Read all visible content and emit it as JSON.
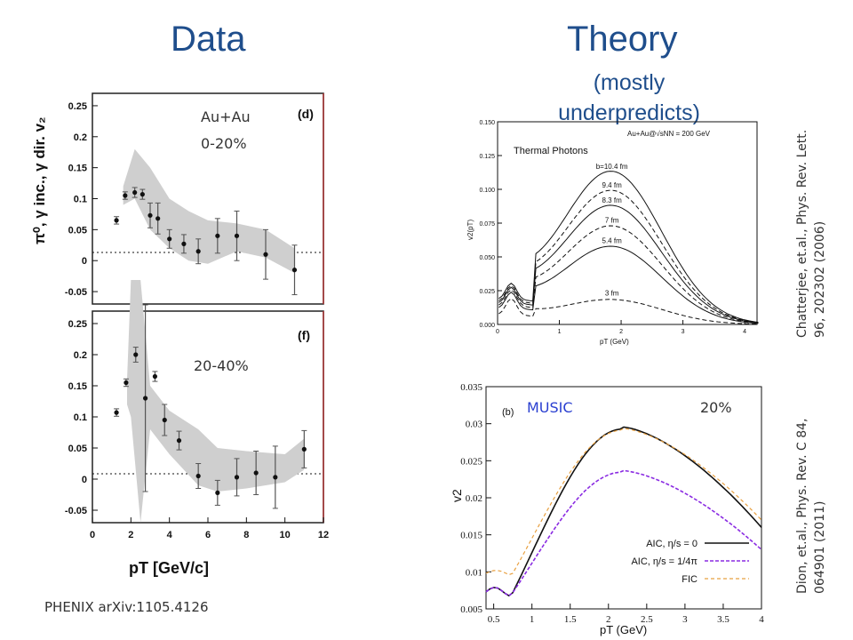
{
  "slide": {
    "title_left": "Data",
    "title_right": "Theory",
    "subtitle_right": "(mostly underpredicts)",
    "source_left": "PHENIX arXiv:1105.4126",
    "ref_top_right": "Chatterjee, et.al., Phys. Rev. Lett. 96, 202302 (2006)",
    "ref_bottom_right": "Dion, et.al., Phys. Rev. C 84, 064901 (2011)"
  },
  "data_panels": {
    "y_axis_label": "π⁰, γ inc., γ dir. v₂",
    "x_axis_label": "pT [GeV/c]",
    "top": {
      "tag": "(d)",
      "system": "Au+Au",
      "centrality": "0-20%",
      "yticks": [
        "0.25",
        "0.2",
        "0.15",
        "0.1",
        "0.05",
        "0",
        "-0.05"
      ]
    },
    "bottom": {
      "tag": "(f)",
      "centrality": "20-40%",
      "yticks": [
        "0.25",
        "0.2",
        "0.15",
        "0.1",
        "0.05",
        "0",
        "-0.05"
      ],
      "xticks": [
        "0",
        "2",
        "4",
        "6",
        "8",
        "10",
        "12"
      ]
    }
  },
  "chart_data": [
    {
      "type": "scatter",
      "panel": "(d)",
      "x": [
        1.25,
        1.7,
        2.2,
        2.6,
        3.0,
        3.4,
        4.0,
        4.75,
        5.5,
        6.5,
        7.5
      ],
      "y": [
        0.065,
        0.105,
        0.11,
        0.107,
        0.073,
        0.068,
        0.035,
        0.027,
        0.015,
        0.04,
        0.04
      ],
      "extra_points": {
        "x": [
          9.0,
          10.5
        ],
        "y": [
          0.01,
          -0.015
        ]
      },
      "ylim": [
        -0.07,
        0.27
      ],
      "xlim": [
        0,
        12
      ]
    },
    {
      "type": "scatter",
      "panel": "(f)",
      "x": [
        1.25,
        1.75,
        2.25,
        2.75,
        3.25,
        3.75,
        4.5,
        5.5,
        6.5,
        7.5,
        8.5,
        9.5,
        11.0
      ],
      "y": [
        0.107,
        0.155,
        0.2,
        0.13,
        0.165,
        0.095,
        0.062,
        0.005,
        -0.022,
        0.003,
        0.01,
        0.003,
        0.048
      ],
      "ylim": [
        -0.07,
        0.27
      ],
      "xlim": [
        0,
        12
      ]
    },
    {
      "type": "line",
      "title": "Thermal Photons",
      "annotation": "Au+Au@√sNN = 200 GeV",
      "xlabel": "pT (GeV)",
      "ylabel": "v2(pT)",
      "xlim": [
        0,
        4.2
      ],
      "ylim": [
        0,
        0.15
      ],
      "xticks": [
        "0",
        "1",
        "2",
        "3",
        "4"
      ],
      "yticks": [
        "0.000",
        "0.025",
        "0.050",
        "0.075",
        "0.100",
        "0.125",
        "0.150"
      ],
      "series": [
        {
          "name": "b=10.4 fm",
          "peak": 0.112
        },
        {
          "name": "9.4 fm",
          "peak": 0.098
        },
        {
          "name": "8.3 fm",
          "peak": 0.087
        },
        {
          "name": "7 fm",
          "peak": 0.072
        },
        {
          "name": "5.4 fm",
          "peak": 0.057
        },
        {
          "name": "3 fm",
          "peak": 0.018
        }
      ]
    },
    {
      "type": "line",
      "tag": "(b)",
      "model": "MUSIC",
      "centrality": "20%",
      "xlabel": "pT (GeV)",
      "ylabel": "v2",
      "xlim": [
        0.4,
        4
      ],
      "ylim": [
        0.005,
        0.035
      ],
      "xticks": [
        "0.5",
        "1",
        "1.5",
        "2",
        "2.5",
        "3",
        "3.5",
        "4"
      ],
      "yticks": [
        "0.005",
        "0.01",
        "0.015",
        "0.02",
        "0.025",
        "0.03",
        "0.035"
      ],
      "series": [
        {
          "name": "AIC, η/s = 0",
          "peak": 0.0296
        },
        {
          "name": "AIC, η/s = 1/4π",
          "peak": 0.0237
        },
        {
          "name": "FIC",
          "peak": 0.0294
        }
      ],
      "colors": {
        "AIC, η/s = 0": "#000000",
        "AIC, η/s = 1/4π": "#8a2be2",
        "FIC": "#e8a040"
      }
    }
  ]
}
